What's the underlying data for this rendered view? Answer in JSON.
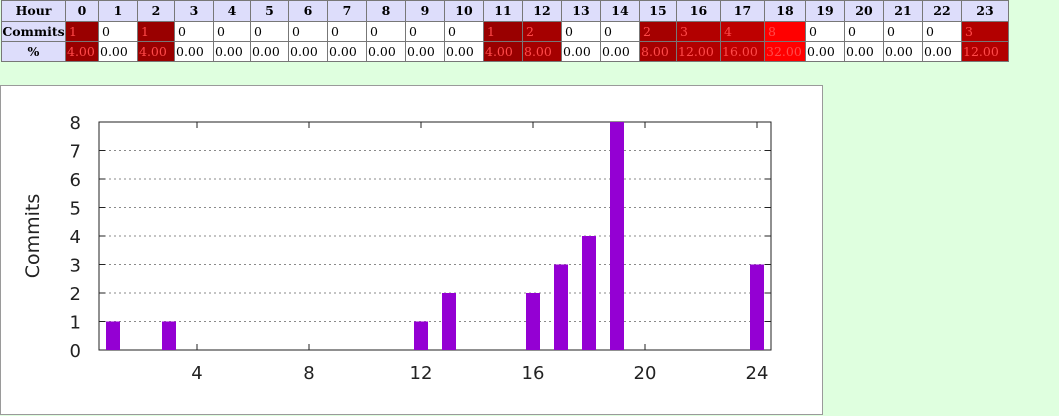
{
  "table": {
    "hour_header": "Hour",
    "commits_header": "Commits",
    "percent_header": "%",
    "hours": [
      "0",
      "1",
      "2",
      "3",
      "4",
      "5",
      "6",
      "7",
      "8",
      "9",
      "10",
      "11",
      "12",
      "13",
      "14",
      "15",
      "16",
      "17",
      "18",
      "19",
      "20",
      "21",
      "22",
      "23"
    ],
    "commits": [
      "1",
      "0",
      "1",
      "0",
      "0",
      "0",
      "0",
      "0",
      "0",
      "0",
      "0",
      "1",
      "2",
      "0",
      "0",
      "2",
      "3",
      "4",
      "8",
      "0",
      "0",
      "0",
      "0",
      "3"
    ],
    "percents": [
      "4.00",
      "0.00",
      "4.00",
      "0.00",
      "0.00",
      "0.00",
      "0.00",
      "0.00",
      "0.00",
      "0.00",
      "0.00",
      "4.00",
      "8.00",
      "0.00",
      "0.00",
      "8.00",
      "12.00",
      "16.00",
      "32.00",
      "0.00",
      "0.00",
      "0.00",
      "0.00",
      "12.00"
    ]
  },
  "colors": {
    "bar": "#9400d3",
    "max_cell": "#ff0000",
    "active_cell_base": "#a00000",
    "empty_cell": "#ffffff",
    "header_bg": "#ddddfb",
    "page_bg": "#dfffdf"
  },
  "chart_data": {
    "type": "bar",
    "title": "",
    "xlabel": "",
    "ylabel": "Commits",
    "x": [
      1,
      3,
      12,
      13,
      16,
      17,
      18,
      19,
      24
    ],
    "values": [
      1,
      1,
      1,
      2,
      2,
      3,
      4,
      8,
      3
    ],
    "xlim": [
      0.5,
      24.5
    ],
    "ylim": [
      0,
      8
    ],
    "xticks": [
      4,
      8,
      12,
      16,
      20,
      24
    ],
    "yticks": [
      0,
      1,
      2,
      3,
      4,
      5,
      6,
      7,
      8
    ],
    "grid": true
  }
}
